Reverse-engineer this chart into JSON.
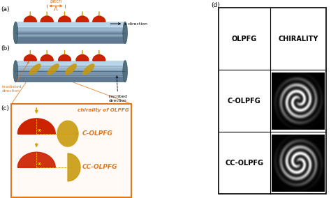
{
  "fig_width": 4.74,
  "fig_height": 2.84,
  "bg_color": "#ffffff",
  "label_a": "(a)",
  "label_b": "(b)",
  "label_c": "(c)",
  "label_d": "(d)",
  "pitch_label": "pitch",
  "lambda_label": "Λ",
  "z_direction_label": "z direction",
  "irradiated_label": "irradiated\ndirection",
  "inscribed_label": "inscribed\ndirection",
  "chirality_label": "chirality of OLPFG",
  "c_olpfg_label": "C-OLPFG",
  "cc_olpfg_label": "CC-OLPFG",
  "olpfg_col_label": "OLPFG",
  "chirality_col_label": "CHIRALITY",
  "table_c_label": "C-OLPFG",
  "table_cc_label": "CC-OLPFG",
  "fiber_color": "#6a8090",
  "fiber_highlight": "#9ab0c0",
  "fiber_dark": "#3a5060",
  "spot_red": "#cc2200",
  "spot_yellow": "#c8980a",
  "arrow_color": "#d4a000",
  "orange_box": "#e07820",
  "text_orange": "#e07820",
  "text_red": "#cc2200",
  "ninety_color": "#ffd700"
}
